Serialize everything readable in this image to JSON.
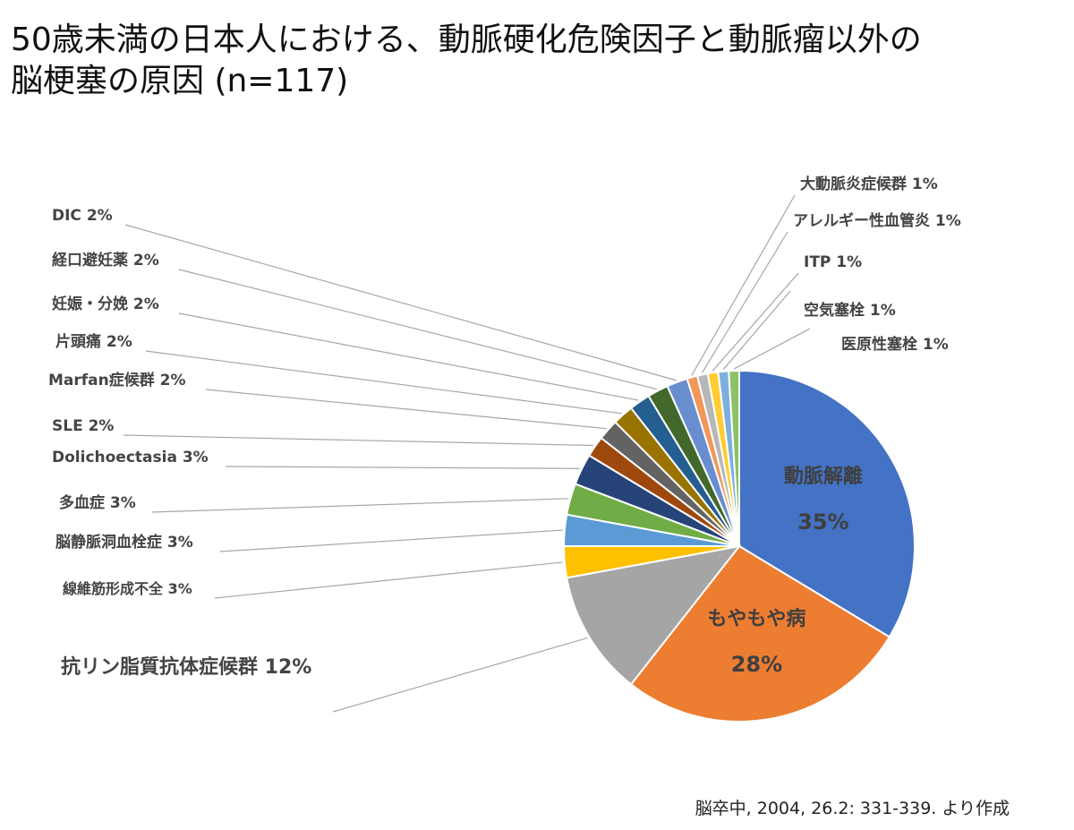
{
  "title_line1": "50歳未満の日本人における、動脈硬化危険因子と動脈瘤以外の",
  "title_line2": "脳梗塞の原因 (n=117)",
  "source": "脳卒中, 2004, 26.2: 331-339. より作成",
  "chart_data": {
    "type": "pie",
    "title": "50歳未満の日本人における、動脈硬化危険因子と動脈瘤以外の脳梗塞の原因 (n=117)",
    "slices": [
      {
        "label": "動脈解離",
        "pct": 35,
        "value_text": "35%",
        "color": "#4472c4"
      },
      {
        "label": "もやもや病",
        "pct": 28,
        "value_text": "28%",
        "color": "#ed7d31"
      },
      {
        "label": "抗リン脂質抗体症候群",
        "pct": 12,
        "value_text": "12%",
        "color": "#a5a5a5"
      },
      {
        "label": "線維筋形成不全",
        "pct": 3,
        "value_text": "3%",
        "color": "#ffc000"
      },
      {
        "label": "脳静脈洞血栓症",
        "pct": 3,
        "value_text": "3%",
        "color": "#5b9bd5"
      },
      {
        "label": "多血症",
        "pct": 3,
        "value_text": "3%",
        "color": "#70ad47"
      },
      {
        "label": "Dolichoectasia",
        "pct": 3,
        "value_text": "3%",
        "color": "#264478"
      },
      {
        "label": "SLE",
        "pct": 2,
        "value_text": "2%",
        "color": "#9e480e"
      },
      {
        "label": "Marfan症候群",
        "pct": 2,
        "value_text": "2%",
        "color": "#636363"
      },
      {
        "label": "片頭痛",
        "pct": 2,
        "value_text": "2%",
        "color": "#997300"
      },
      {
        "label": "妊娠・分娩",
        "pct": 2,
        "value_text": "2%",
        "color": "#255e91"
      },
      {
        "label": "経口避妊薬",
        "pct": 2,
        "value_text": "2%",
        "color": "#43682b"
      },
      {
        "label": "DIC",
        "pct": 2,
        "value_text": "2%",
        "color": "#698ed0"
      },
      {
        "label": "大動脈炎症候群",
        "pct": 1,
        "value_text": "1%",
        "color": "#f1975a"
      },
      {
        "label": "アレルギー性血管炎",
        "pct": 1,
        "value_text": "1%",
        "color": "#b7b7b7"
      },
      {
        "label": "ITP",
        "pct": 1,
        "value_text": "1%",
        "color": "#ffcd33"
      },
      {
        "label": "空気塞栓",
        "pct": 1,
        "value_text": "1%",
        "color": "#7cafdd"
      },
      {
        "label": "医原性塞栓",
        "pct": 1,
        "value_text": "1%",
        "color": "#8cc168"
      }
    ]
  }
}
